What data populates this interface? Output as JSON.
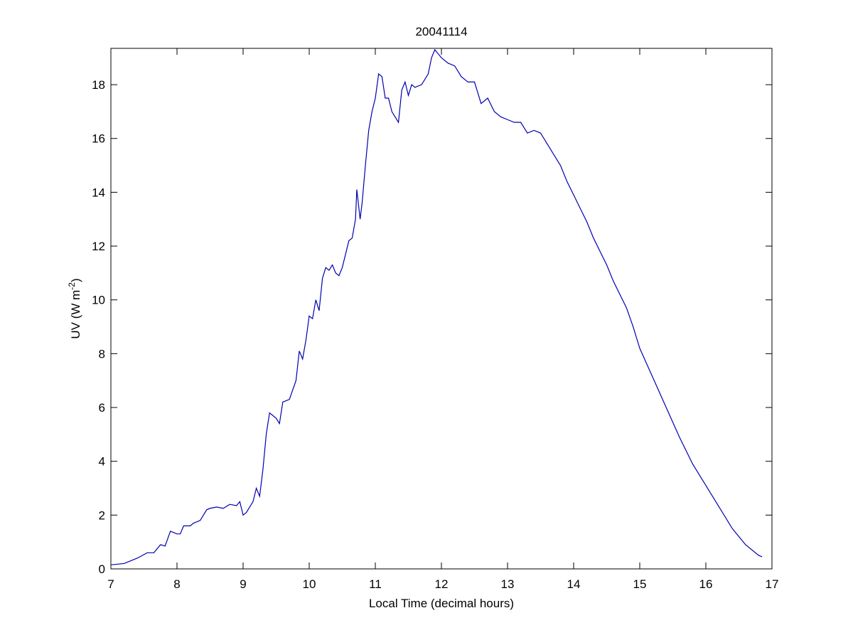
{
  "chart_data": {
    "type": "line",
    "title": "20041114",
    "xlabel": "Local Time (decimal hours)",
    "ylabel": "UV (W m",
    "ylabel_superscript": "-2",
    "ylabel_end": ")",
    "xlim": [
      7,
      17
    ],
    "xticks": [
      7,
      8,
      9,
      10,
      11,
      12,
      13,
      14,
      15,
      16,
      17
    ],
    "ylim": [
      0,
      19.35
    ],
    "yticks": [
      0,
      2,
      4,
      6,
      8,
      10,
      12,
      14,
      16,
      18
    ],
    "grid": false,
    "series": [
      {
        "color": "#0000b0",
        "x": [
          7.0,
          7.2,
          7.4,
          7.55,
          7.65,
          7.75,
          7.82,
          7.9,
          8.0,
          8.05,
          8.1,
          8.2,
          8.25,
          8.35,
          8.45,
          8.5,
          8.6,
          8.7,
          8.8,
          8.9,
          8.95,
          9.0,
          9.05,
          9.1,
          9.15,
          9.2,
          9.25,
          9.3,
          9.35,
          9.4,
          9.5,
          9.55,
          9.6,
          9.7,
          9.8,
          9.85,
          9.9,
          9.95,
          10.0,
          10.05,
          10.1,
          10.15,
          10.2,
          10.25,
          10.3,
          10.35,
          10.4,
          10.45,
          10.5,
          10.6,
          10.65,
          10.7,
          10.72,
          10.77,
          10.8,
          10.85,
          10.9,
          10.95,
          11.0,
          11.05,
          11.1,
          11.15,
          11.2,
          11.25,
          11.3,
          11.35,
          11.4,
          11.45,
          11.5,
          11.55,
          11.6,
          11.7,
          11.8,
          11.85,
          11.9,
          12.0,
          12.1,
          12.2,
          12.3,
          12.4,
          12.5,
          12.6,
          12.7,
          12.8,
          12.9,
          13.0,
          13.1,
          13.2,
          13.3,
          13.4,
          13.5,
          13.6,
          13.7,
          13.8,
          13.9,
          14.0,
          14.1,
          14.2,
          14.3,
          14.4,
          14.5,
          14.6,
          14.7,
          14.8,
          14.9,
          15.0,
          15.2,
          15.4,
          15.6,
          15.8,
          16.0,
          16.2,
          16.4,
          16.6,
          16.8,
          16.85
        ],
        "values": [
          0.15,
          0.2,
          0.4,
          0.6,
          0.6,
          0.9,
          0.85,
          1.4,
          1.3,
          1.3,
          1.6,
          1.6,
          1.7,
          1.8,
          2.2,
          2.25,
          2.3,
          2.25,
          2.4,
          2.35,
          2.5,
          2.0,
          2.1,
          2.3,
          2.5,
          3.0,
          2.7,
          3.7,
          5.0,
          5.8,
          5.6,
          5.4,
          6.2,
          6.3,
          7.0,
          8.1,
          7.8,
          8.5,
          9.4,
          9.3,
          10.0,
          9.6,
          10.8,
          11.2,
          11.1,
          11.3,
          11.0,
          10.9,
          11.2,
          12.2,
          12.3,
          13.0,
          14.1,
          13.0,
          13.6,
          15.0,
          16.3,
          17.0,
          17.5,
          18.4,
          18.3,
          17.5,
          17.5,
          17.0,
          16.8,
          16.6,
          17.8,
          18.1,
          17.6,
          18.0,
          17.9,
          18.0,
          18.4,
          19.0,
          19.3,
          19.0,
          18.8,
          18.7,
          18.3,
          18.1,
          18.1,
          17.3,
          17.5,
          17.0,
          16.8,
          16.7,
          16.6,
          16.6,
          16.2,
          16.3,
          16.2,
          15.8,
          15.4,
          15.0,
          14.4,
          13.9,
          13.4,
          12.9,
          12.3,
          11.8,
          11.3,
          10.7,
          10.2,
          9.7,
          9.0,
          8.2,
          7.1,
          6.0,
          4.9,
          3.9,
          3.1,
          2.3,
          1.5,
          0.9,
          0.5,
          0.45
        ]
      }
    ]
  }
}
